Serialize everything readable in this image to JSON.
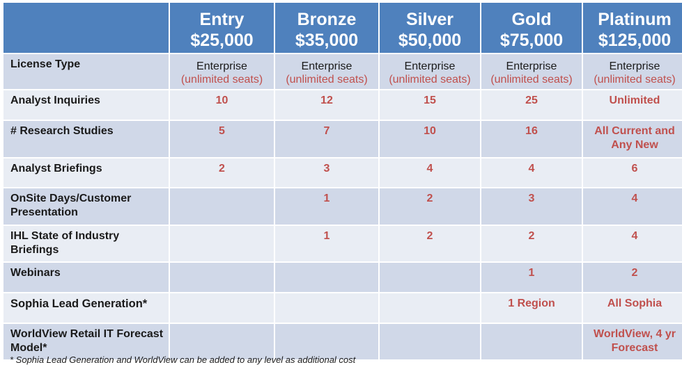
{
  "tiers": [
    {
      "name": "Entry",
      "price": "$25,000"
    },
    {
      "name": "Bronze",
      "price": "$35,000"
    },
    {
      "name": "Silver",
      "price": "$50,000"
    },
    {
      "name": "Gold",
      "price": "$75,000"
    },
    {
      "name": "Platinum",
      "price": "$125,000"
    }
  ],
  "license": {
    "label": "License Type",
    "type": "Enterprise",
    "seats": "(unlimited seats)"
  },
  "rows": [
    {
      "label": "Analyst Inquiries",
      "values": [
        "10",
        "12",
        "15",
        "25",
        "Unlimited"
      ]
    },
    {
      "label": "# Research Studies",
      "values": [
        "5",
        "7",
        "10",
        "16",
        "All Current and Any New"
      ]
    },
    {
      "label": "Analyst Briefings",
      "values": [
        "2",
        "3",
        "4",
        "4",
        "6"
      ]
    },
    {
      "label": "OnSite Days/Customer Presentation",
      "values": [
        "",
        "1",
        "2",
        "3",
        "4"
      ]
    },
    {
      "label": "IHL State of Industry Briefings",
      "values": [
        "",
        "1",
        "2",
        "2",
        "4"
      ]
    },
    {
      "label": "Webinars",
      "values": [
        "",
        "",
        "",
        "1",
        "2"
      ]
    },
    {
      "label": "Sophia Lead Generation*",
      "values": [
        "",
        "",
        "",
        "1 Region",
        "All Sophia"
      ]
    },
    {
      "label": "WorldView Retail IT Forecast Model*",
      "values": [
        "",
        "",
        "",
        "",
        "WorldView, 4 yr Forecast"
      ]
    }
  ],
  "footnote": "* Sophia Lead Generation and WorldView can be added to any level as additional cost",
  "colors": {
    "header": "#4f81bd",
    "row_dark": "#d0d8e8",
    "row_light": "#e9edf4",
    "value_red": "#c0504d"
  }
}
